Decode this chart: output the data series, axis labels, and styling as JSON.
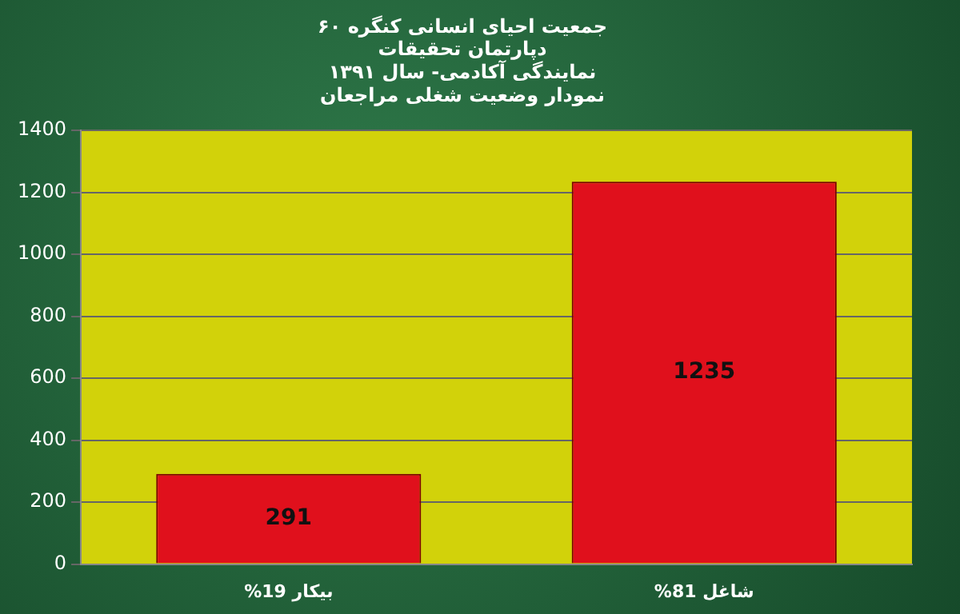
{
  "chart_data": {
    "type": "bar",
    "title": [
      "جمعیت احیای انسانی کنگره ۶۰",
      "دپارتمان تحقیقات",
      "نمایندگی آکادمی- سال ۱۳۹۱",
      "نمودار وضعیت شغلی مراجعان"
    ],
    "categories": [
      "%19 بیکار",
      "%81 شاغل"
    ],
    "values": [
      291,
      1235
    ],
    "color": "#e0101c",
    "ylim": [
      0,
      1400
    ],
    "yticks": [
      0,
      200,
      400,
      600,
      800,
      1000,
      1200,
      1400
    ],
    "grid": "y",
    "data_labels": true
  }
}
